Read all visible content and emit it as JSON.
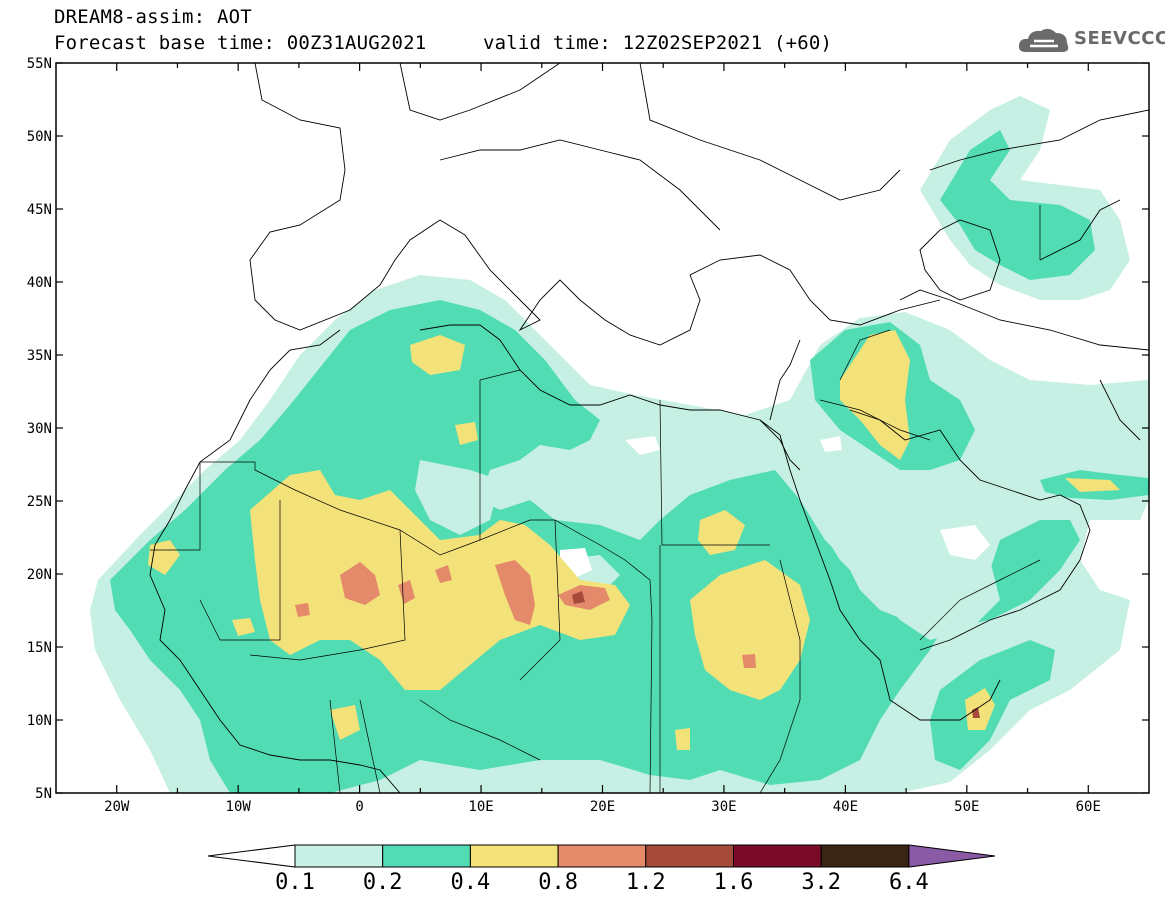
{
  "header": {
    "line1": "DREAM8-assim: AOT",
    "base_time": "Forecast base time: 00Z31AUG2021",
    "valid_time": "valid time: 12Z02SEP2021 (+60)"
  },
  "logo": {
    "text": "SEEVCCC",
    "icon": "cloud-icon"
  },
  "axes": {
    "lat_labels": [
      "55N",
      "50N",
      "45N",
      "40N",
      "35N",
      "30N",
      "25N",
      "20N",
      "15N",
      "10N",
      "5N"
    ],
    "lon_labels": [
      "20W",
      "10W",
      "0",
      "10E",
      "20E",
      "30E",
      "40E",
      "50E",
      "60E"
    ]
  },
  "map": {
    "variable": "AOT",
    "lon_range": [
      -25,
      65
    ],
    "lat_range": [
      5,
      55
    ]
  },
  "colorbar": {
    "levels": [
      "0.1",
      "0.2",
      "0.4",
      "0.8",
      "1.2",
      "1.6",
      "3.2",
      "6.4"
    ],
    "colors": [
      "#ffffff",
      "#c6f0e3",
      "#52dcb4",
      "#f3e27a",
      "#e4896a",
      "#a64a3c",
      "#7a0a2a",
      "#3a2514",
      "#8a5aa6"
    ]
  }
}
